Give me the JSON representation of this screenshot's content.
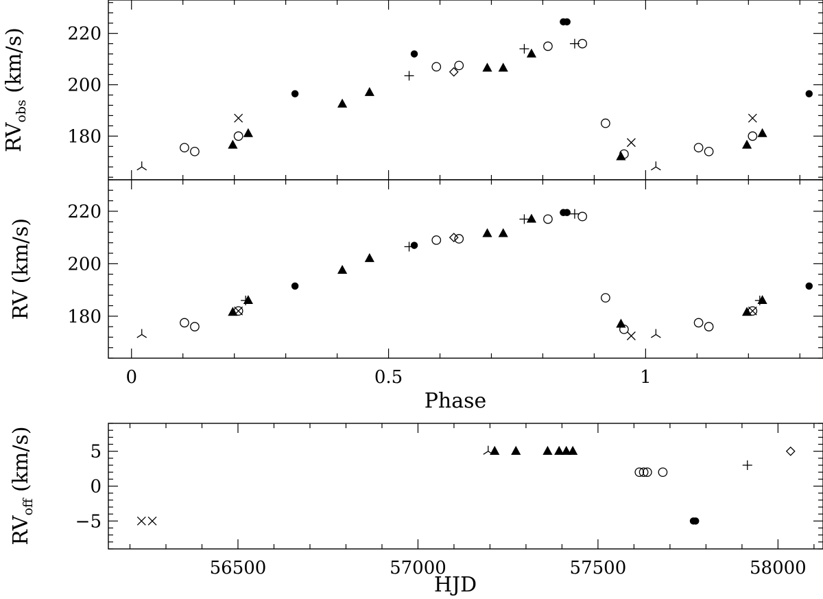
{
  "chart_data": [
    {
      "type": "scatter",
      "name": "RV_obs vs Phase",
      "ylabel_main": "RV",
      "ylabel_sub": "obs",
      "ylabel_unit": "(km/s)",
      "xlabel": "",
      "xlim": [
        -0.045,
        1.345
      ],
      "ylim": [
        163,
        233
      ],
      "xticks": [
        0,
        0.5,
        1
      ],
      "xtick_labels": [
        "",
        "",
        ""
      ],
      "yticks": [
        180,
        200,
        220
      ],
      "ytick_labels": [
        "180",
        "200",
        "220"
      ],
      "series": [
        {
          "marker": "circle-filled",
          "points": [
            [
              0.318,
              196.5
            ],
            [
              0.55,
              212
            ],
            [
              0.84,
              224.5
            ],
            [
              0.847,
              224.5
            ],
            [
              1.318,
              196.5
            ]
          ]
        },
        {
          "marker": "triangle-filled",
          "points": [
            [
              0.197,
              176.5
            ],
            [
              0.227,
              181
            ],
            [
              0.41,
              192.5
            ],
            [
              0.463,
              197
            ],
            [
              0.692,
              206.5
            ],
            [
              0.723,
              206.5
            ],
            [
              0.778,
              212
            ],
            [
              0.952,
              172
            ],
            [
              1.197,
              176.5
            ],
            [
              1.227,
              181
            ]
          ]
        },
        {
          "marker": "circle-open",
          "points": [
            [
              0.103,
              175.5
            ],
            [
              0.123,
              174
            ],
            [
              0.208,
              180
            ],
            [
              0.593,
              207
            ],
            [
              0.637,
              207.5
            ],
            [
              0.81,
              215
            ],
            [
              0.877,
              216
            ],
            [
              0.922,
              185
            ],
            [
              0.958,
              173
            ],
            [
              1.103,
              175.5
            ],
            [
              1.123,
              174
            ],
            [
              1.208,
              180
            ]
          ]
        },
        {
          "marker": "cross",
          "points": [
            [
              0.208,
              187
            ],
            [
              0.972,
              177.5
            ],
            [
              1.208,
              187
            ]
          ]
        },
        {
          "marker": "plus",
          "points": [
            [
              0.54,
              203.5
            ],
            [
              0.764,
              214
            ],
            [
              0.862,
              216
            ]
          ]
        },
        {
          "marker": "diamond-open",
          "points": [
            [
              0.627,
              205
            ]
          ]
        },
        {
          "marker": "tri-down",
          "points": [
            [
              0.02,
              168
            ],
            [
              1.02,
              168
            ]
          ]
        }
      ]
    },
    {
      "type": "scatter",
      "name": "RV vs Phase",
      "ylabel_main": "RV",
      "ylabel_sub": "",
      "ylabel_unit": "(km/s)",
      "xlabel": "Phase",
      "xlim": [
        -0.045,
        1.345
      ],
      "ylim": [
        164,
        232
      ],
      "xticks": [
        0,
        0.5,
        1
      ],
      "xtick_labels": [
        "0",
        "0.5",
        "1"
      ],
      "yticks": [
        180,
        200,
        220
      ],
      "ytick_labels": [
        "180",
        "200",
        "220"
      ],
      "series": [
        {
          "marker": "circle-filled",
          "points": [
            [
              0.318,
              191.5
            ],
            [
              0.55,
              207
            ],
            [
              0.84,
              219.5
            ],
            [
              0.847,
              219.5
            ],
            [
              1.318,
              191.5
            ]
          ]
        },
        {
          "marker": "triangle-filled",
          "points": [
            [
              0.197,
              181.5
            ],
            [
              0.227,
              186
            ],
            [
              0.41,
              197.5
            ],
            [
              0.463,
              202
            ],
            [
              0.692,
              211.5
            ],
            [
              0.723,
              211.5
            ],
            [
              0.778,
              217
            ],
            [
              0.952,
              177
            ],
            [
              1.197,
              181.5
            ],
            [
              1.227,
              186
            ]
          ]
        },
        {
          "marker": "circle-open",
          "points": [
            [
              0.103,
              177.5
            ],
            [
              0.123,
              176
            ],
            [
              0.208,
              182
            ],
            [
              0.593,
              209
            ],
            [
              0.637,
              209.5
            ],
            [
              0.81,
              217
            ],
            [
              0.877,
              218
            ],
            [
              0.922,
              187
            ],
            [
              0.958,
              175
            ],
            [
              1.103,
              177.5
            ],
            [
              1.123,
              176
            ],
            [
              1.208,
              182
            ]
          ]
        },
        {
          "marker": "cross",
          "points": [
            [
              0.208,
              182
            ],
            [
              0.972,
              172.5
            ],
            [
              1.208,
              182
            ]
          ]
        },
        {
          "marker": "plus",
          "points": [
            [
              0.54,
              206.5
            ],
            [
              0.764,
              217
            ],
            [
              0.862,
              219
            ],
            [
              0.222,
              186
            ],
            [
              1.222,
              186
            ]
          ]
        },
        {
          "marker": "diamond-open",
          "points": [
            [
              0.627,
              210
            ]
          ]
        },
        {
          "marker": "tri-down",
          "points": [
            [
              0.02,
              173
            ],
            [
              1.02,
              173
            ]
          ]
        }
      ]
    },
    {
      "type": "scatter",
      "name": "RV_off vs HJD",
      "ylabel_main": "RV",
      "ylabel_sub": "off",
      "ylabel_unit": "(km/s)",
      "xlabel": "HJD",
      "xlim": [
        56140,
        58125
      ],
      "ylim": [
        -9,
        9
      ],
      "xticks": [
        56500,
        57000,
        57500,
        58000
      ],
      "xtick_labels": [
        "56500",
        "57000",
        "57500",
        "58000"
      ],
      "yticks": [
        -5,
        0,
        5
      ],
      "ytick_labels": [
        "−5",
        "0",
        "5"
      ],
      "series": [
        {
          "marker": "cross",
          "points": [
            [
              56232,
              -5
            ],
            [
              56262,
              -5
            ]
          ]
        },
        {
          "marker": "tri-down",
          "points": [
            [
              57195,
              5
            ]
          ]
        },
        {
          "marker": "triangle-filled",
          "points": [
            [
              57213,
              5
            ],
            [
              57272,
              5
            ],
            [
              57360,
              5
            ],
            [
              57392,
              5
            ],
            [
              57412,
              5
            ],
            [
              57430,
              5
            ]
          ]
        },
        {
          "marker": "circle-open",
          "points": [
            [
              57615,
              2
            ],
            [
              57627,
              2
            ],
            [
              57637,
              2
            ],
            [
              57680,
              2
            ]
          ]
        },
        {
          "marker": "circle-filled",
          "points": [
            [
              57765,
              -5
            ],
            [
              57771,
              -5
            ]
          ]
        },
        {
          "marker": "plus",
          "points": [
            [
              57915,
              3
            ]
          ]
        },
        {
          "marker": "diamond-open",
          "points": [
            [
              58035,
              5
            ]
          ]
        }
      ]
    }
  ]
}
